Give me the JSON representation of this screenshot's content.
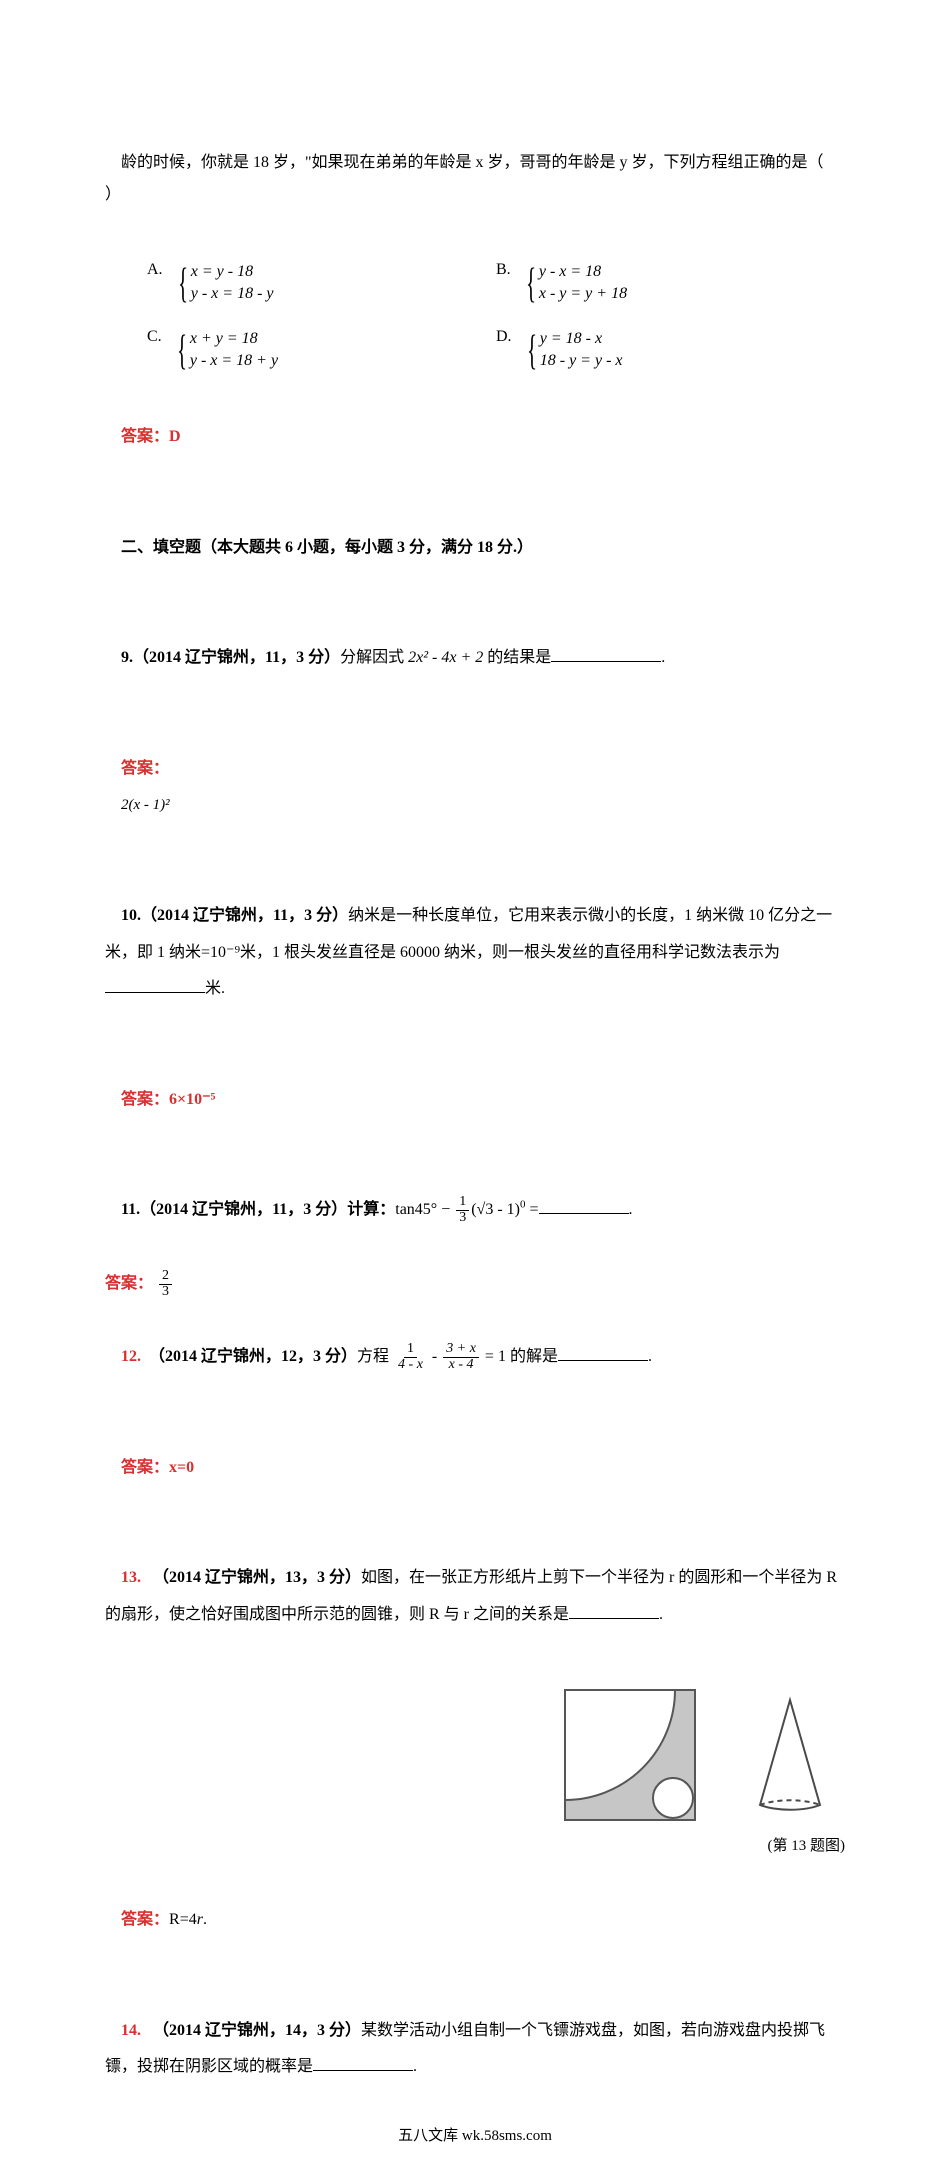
{
  "intro_run": "龄的时候，你就是 18 岁，\"如果现在弟弟的年龄是 x 岁，哥哥的年龄是 y 岁，下列方程组正确的是（      ）",
  "q8": {
    "A_label": "A.",
    "A_l1": "x = y - 18",
    "A_l2": "y - x = 18 - y",
    "B_label": "B.",
    "B_l1": "y - x = 18",
    "B_l2": "x - y = y + 18",
    "C_label": "C.",
    "C_l1": "x + y = 18",
    "C_l2": "y - x = 18 + y",
    "D_label": "D.",
    "D_l1": "y = 18 - x",
    "D_l2": "18 - y = y - x"
  },
  "ans8_label": "答案：D",
  "sec2": "二、填空题（本大题共 6 小题，每小题 3 分，满分 18 分.）",
  "q9": {
    "prefix": "9.（2014 辽宁锦州，11，3 分）",
    "body_a": "分解因式 ",
    "expr": "2x² - 4x + 2",
    "body_b": " 的结果是",
    "blank_w": "110"
  },
  "ans9": {
    "label": "答案：",
    "expr": "2(x - 1)²"
  },
  "q10": {
    "prefix": "10.（2014 辽宁锦州，11，3 分）",
    "body": "纳米是一种长度单位，它用来表示微小的长度，1 纳米微 10 亿分之一米，即 1 纳米=10⁻⁹米，1 根头发丝直径是 60000 纳米，则一根头发丝的直径用科学记数法表示为",
    "unit": "米.",
    "blank_w": "100"
  },
  "ans10": "答案：6×10⁻⁵",
  "q11": {
    "prefix": "11.（2014 辽宁锦州，11，3 分）计算：",
    "pre": "tan45° − ",
    "frac_num": "1",
    "frac_den": "3",
    "post_a": "(√3 - 1)",
    "post_exp": "0",
    "post_b": " =",
    "blank_w": "90"
  },
  "ans11": {
    "label": "答案：",
    "num": "2",
    "den": "3"
  },
  "q12": {
    "prefix": "12.  （2014 辽宁锦州，12，3 分）",
    "body_a": "方程 ",
    "f1_num": "1",
    "f1_den": "4 - x",
    "minus": " - ",
    "f2_num": "3 + x",
    "f2_den": "x - 4",
    "body_b": " = 1 的解是",
    "blank_w": "90"
  },
  "ans12": "答案：x=0",
  "q13": {
    "prefix": "13.   （2014 辽宁锦州，13，3 分）",
    "body": "如图，在一张正方形纸片上剪下一个半径为 r 的圆形和一个半径为 R 的扇形，使之恰好围成图中所示范的圆锥，则 R 与 r 之间的关系是",
    "blank_w": "90"
  },
  "fig13": {
    "caption": "(第 13 题图)",
    "square_fill": "#c6c6c6",
    "stroke": "#565656",
    "cone_stroke": "#4a4a4a"
  },
  "ans13": {
    "label": "答案：",
    "body_a": "R=4",
    "body_b": "r",
    "body_c": "."
  },
  "q14": {
    "prefix": "14.   （2014 辽宁锦州，14，3 分）",
    "body": "某数学活动小组自制一个飞镖游戏盘，如图，若向游戏盘内投掷飞镖，投掷在阴影区域的概率是",
    "blank_w": "100"
  },
  "footer": "五八文库 wk.58sms.com"
}
